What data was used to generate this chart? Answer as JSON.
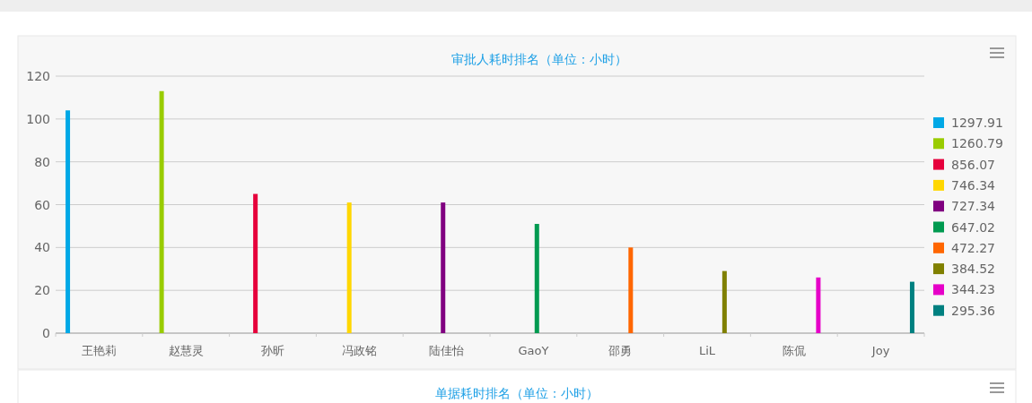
{
  "chart_data": {
    "type": "bar",
    "title": "审批人耗时排名（单位：小时）",
    "categories": [
      "王艳莉",
      "赵慧灵",
      "孙昕",
      "冯政铭",
      "陆佳怡",
      "GaoY",
      "邵勇",
      "LiL",
      "陈侃",
      "Joy"
    ],
    "series": [
      {
        "name": "1297.91",
        "color": "#00a8e6",
        "values": [
          104,
          null,
          null,
          null,
          null,
          null,
          null,
          null,
          null,
          null
        ]
      },
      {
        "name": "1260.79",
        "color": "#99cc00",
        "values": [
          null,
          113,
          null,
          null,
          null,
          null,
          null,
          null,
          null,
          null
        ]
      },
      {
        "name": "856.07",
        "color": "#e6003c",
        "values": [
          null,
          null,
          65,
          null,
          null,
          null,
          null,
          null,
          null,
          null
        ]
      },
      {
        "name": "746.34",
        "color": "#ffd700",
        "values": [
          null,
          null,
          null,
          61,
          null,
          null,
          null,
          null,
          null,
          null
        ]
      },
      {
        "name": "727.34",
        "color": "#800080",
        "values": [
          null,
          null,
          null,
          null,
          61,
          null,
          null,
          null,
          null,
          null
        ]
      },
      {
        "name": "647.02",
        "color": "#009a50",
        "values": [
          null,
          null,
          null,
          null,
          null,
          51,
          null,
          null,
          null,
          null
        ]
      },
      {
        "name": "472.27",
        "color": "#ff6600",
        "values": [
          null,
          null,
          null,
          null,
          null,
          null,
          40,
          null,
          null,
          null
        ]
      },
      {
        "name": "384.52",
        "color": "#808000",
        "values": [
          null,
          null,
          null,
          null,
          null,
          null,
          null,
          29,
          null,
          null
        ]
      },
      {
        "name": "344.23",
        "color": "#e600c8",
        "values": [
          null,
          null,
          null,
          null,
          null,
          null,
          null,
          null,
          26,
          null
        ]
      },
      {
        "name": "295.36",
        "color": "#008080",
        "values": [
          null,
          null,
          null,
          null,
          null,
          null,
          null,
          null,
          null,
          24
        ]
      }
    ],
    "ylim": [
      0,
      120
    ],
    "yticks": [
      0,
      20,
      40,
      60,
      80,
      100,
      120
    ],
    "grid": "y",
    "legend": "right",
    "annotations": [
      "单据耗时排名（单位：小时）"
    ]
  }
}
